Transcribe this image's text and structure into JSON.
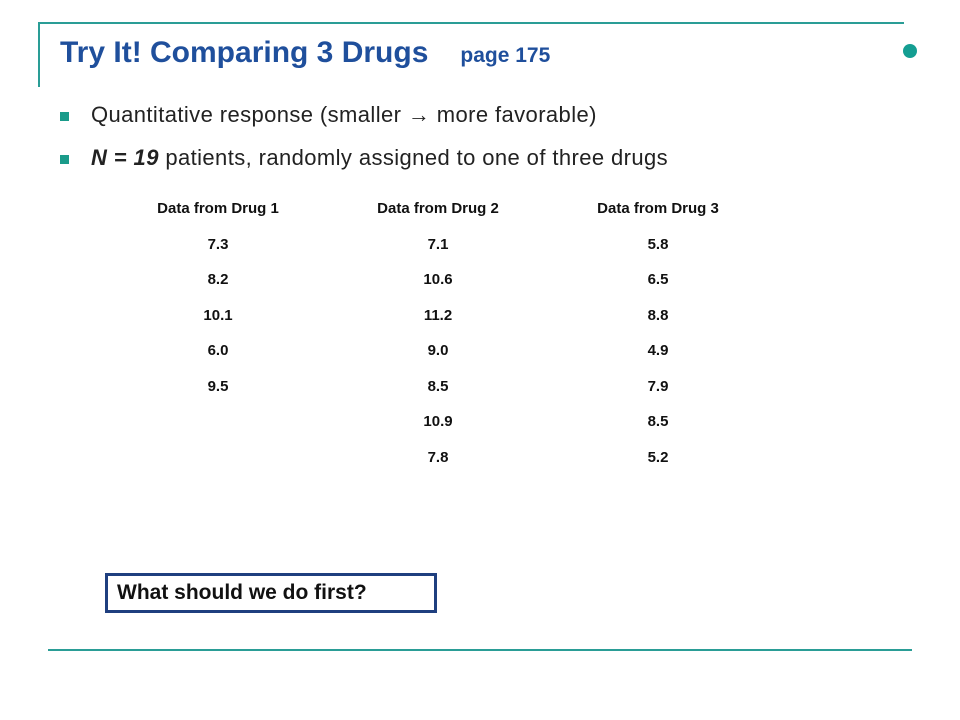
{
  "slide": {
    "title": "Try It! Comparing 3 Drugs",
    "page_ref": "page 175",
    "bullets": [
      {
        "text": "Quantitative response (smaller → more favorable)"
      },
      {
        "strong": "N = 19",
        "rest": " patients, randomly assigned to one of three drugs"
      }
    ],
    "question": "What should we do first?"
  },
  "table": {
    "headers": [
      "Data from Drug 1",
      "Data from Drug 2",
      "Data from Drug 3"
    ],
    "rows": [
      [
        "7.3",
        "7.1",
        "5.8"
      ],
      [
        "8.2",
        "10.6",
        "6.5"
      ],
      [
        "10.1",
        "11.2",
        "8.8"
      ],
      [
        "6.0",
        "9.0",
        "4.9"
      ],
      [
        "9.5",
        "8.5",
        "7.9"
      ],
      [
        "",
        "10.9",
        "8.5"
      ],
      [
        "",
        "7.8",
        "5.2"
      ]
    ]
  },
  "colors": {
    "title": "#1f4f9c",
    "accent_teal": "#2a9d96",
    "box_border": "#1f3f7f"
  }
}
